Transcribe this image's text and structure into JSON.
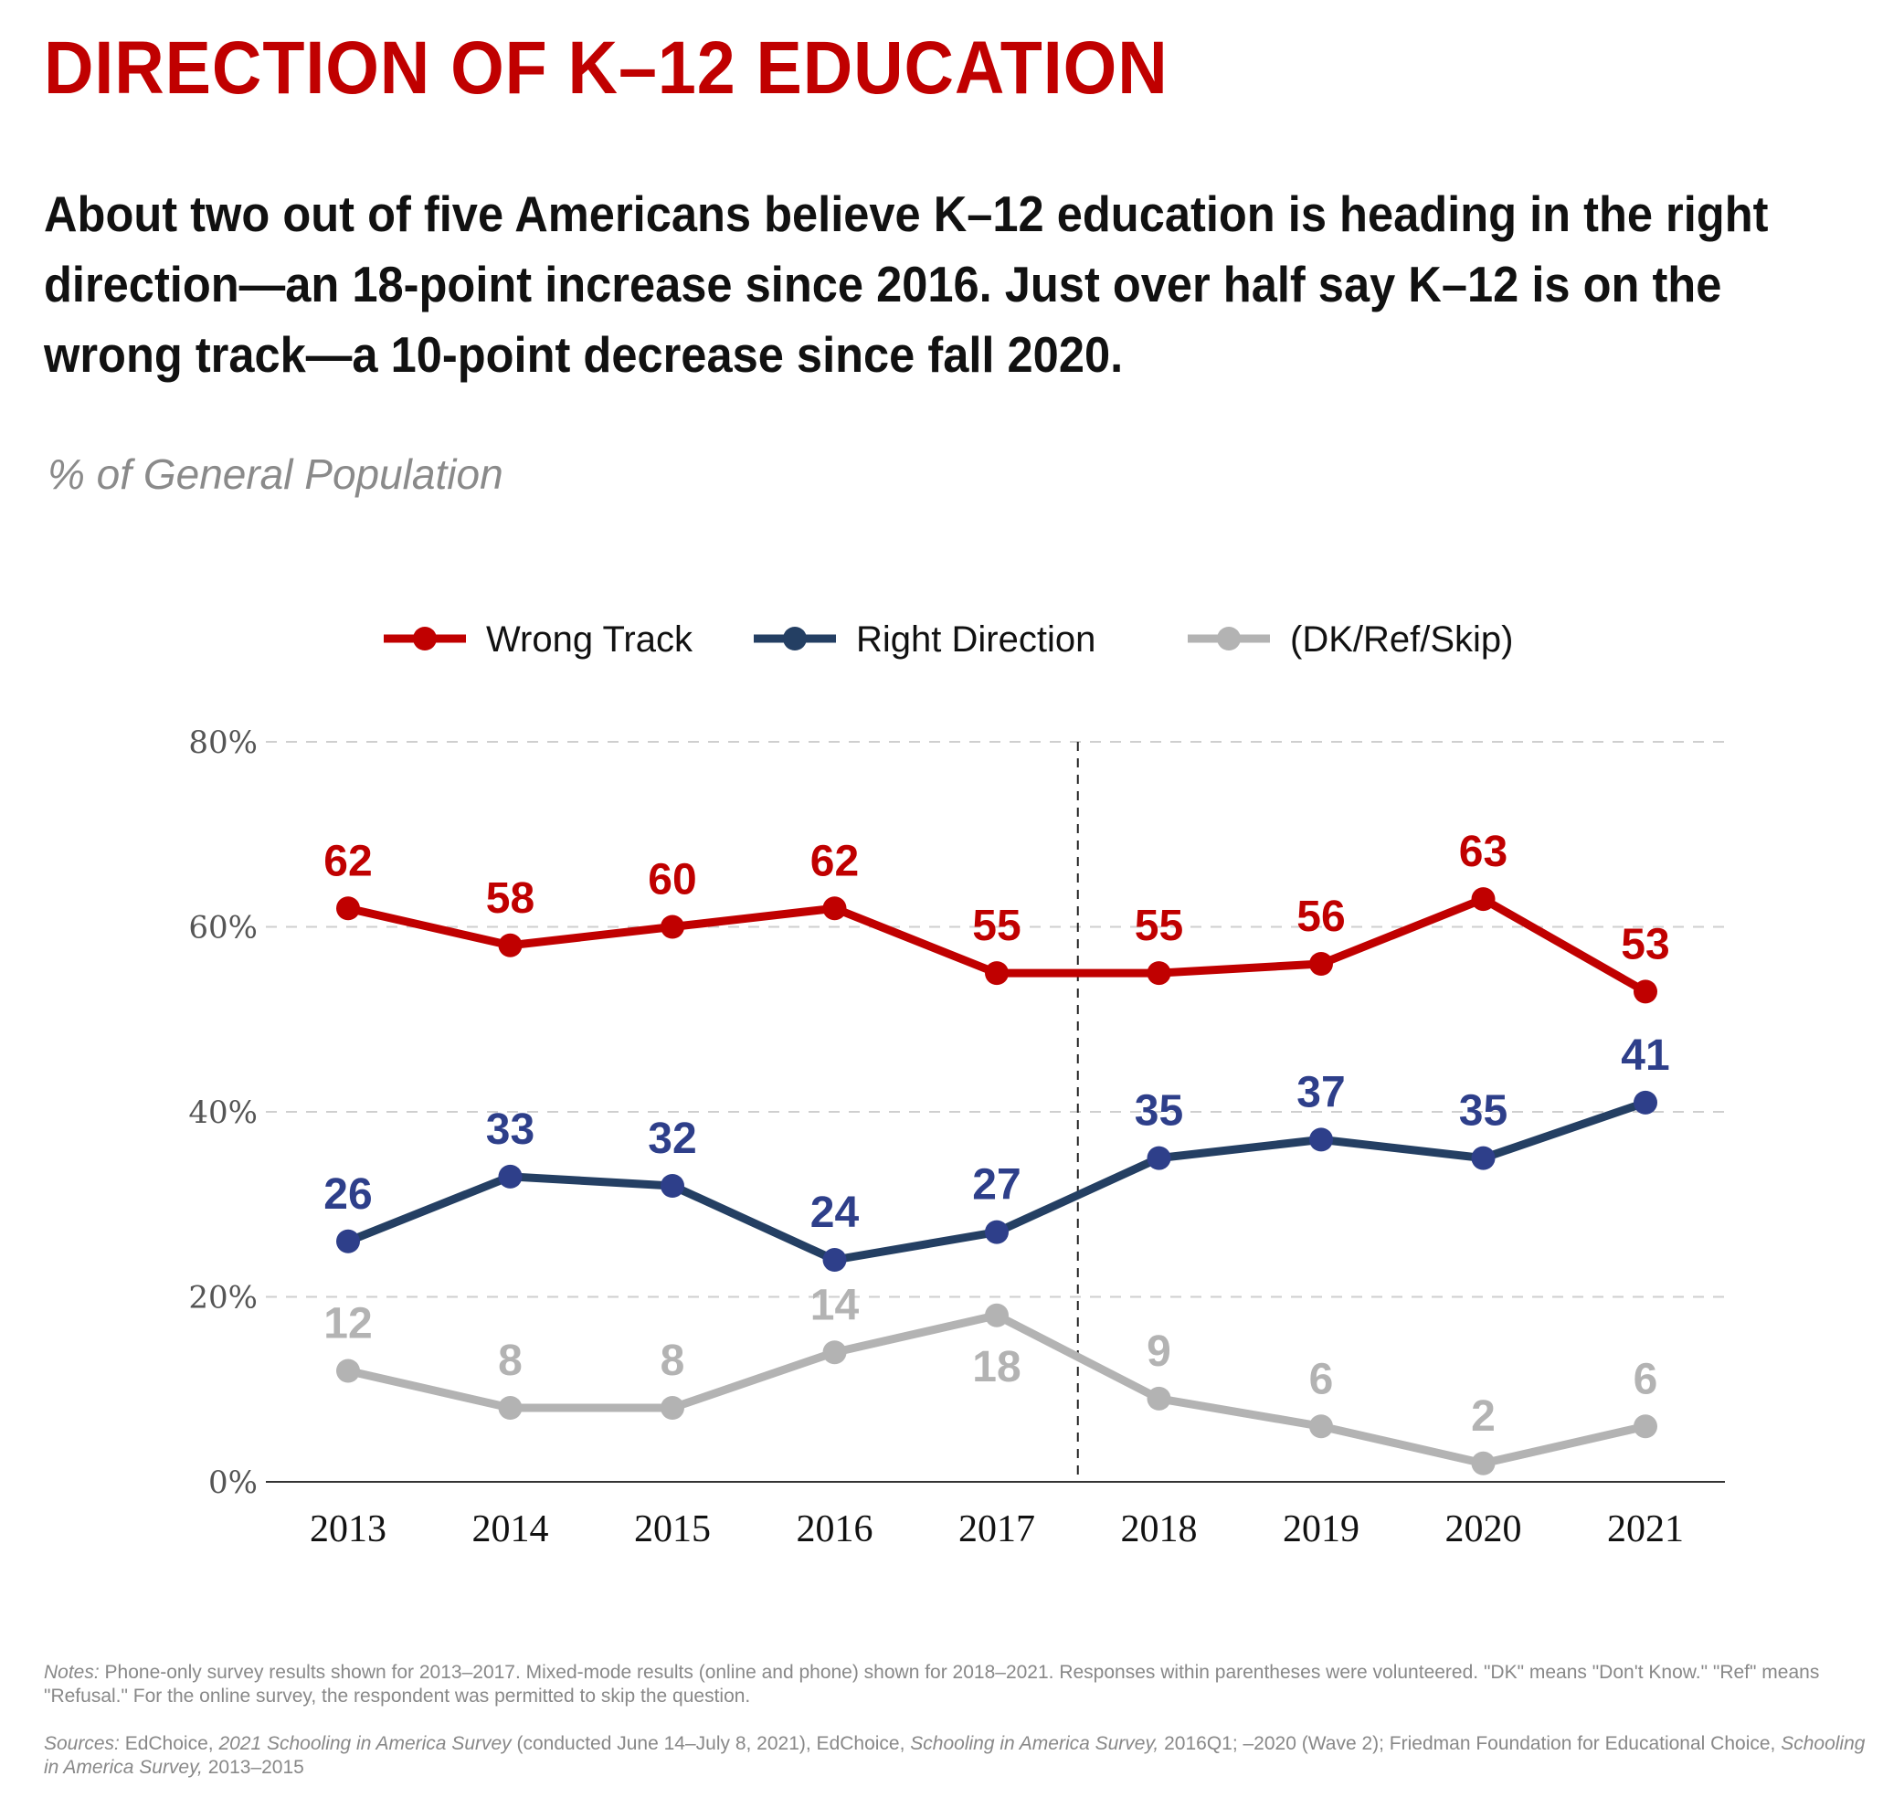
{
  "title": "DIRECTION OF K–12 EDUCATION",
  "subtitle": "About two out of five Americans believe K–12 education is heading in the right direction—an 18-point increase since 2016. Just over half say K–12 is on the wrong track—a 10-point decrease since fall 2020.",
  "unit_label": "% of General Population",
  "chart_data": {
    "type": "line",
    "categories": [
      "2013",
      "2014",
      "2015",
      "2016",
      "2017",
      "2018",
      "2019",
      "2020",
      "2021"
    ],
    "series": [
      {
        "name": "Wrong Track",
        "color": "#c00000",
        "values": [
          62,
          58,
          60,
          62,
          55,
          55,
          56,
          63,
          53
        ]
      },
      {
        "name": "Right Direction",
        "color": "#243f63",
        "label_color": "#2e3f8a",
        "values": [
          26,
          33,
          32,
          24,
          27,
          35,
          37,
          35,
          41
        ]
      },
      {
        "name": "(DK/Ref/Skip)",
        "color": "#b3b3b3",
        "values": [
          12,
          8,
          8,
          14,
          18,
          9,
          6,
          2,
          6
        ]
      }
    ],
    "y_ticks": [
      "0%",
      "20%",
      "40%",
      "60%",
      "80%"
    ],
    "ylim": [
      0,
      80
    ],
    "grid": "horizontal dashed",
    "legend": "top-center",
    "divider_between": [
      "2017",
      "2018"
    ]
  },
  "notes": {
    "label": "Notes:",
    "text": " Phone-only survey results shown for 2013–2017. Mixed-mode results (online and phone) shown for 2018–2021. Responses within parentheses were volunteered. \"DK\" means \"Don't Know.\"  \"Ref\" means \"Refusal.\" For the online survey, the respondent was permitted to skip the question."
  },
  "sources": {
    "label": "Sources:",
    "p1": " EdChoice, ",
    "i1": "2021 Schooling in America Survey",
    "p2": " (conducted June 14–July 8, 2021), EdChoice, ",
    "i2": "Schooling in America Survey,",
    "p3": " 2016Q1; –2020 (Wave 2); Friedman Foundation for Educational Choice, ",
    "i3": "Schooling in America Survey,",
    "p4": " 2013–2015"
  }
}
